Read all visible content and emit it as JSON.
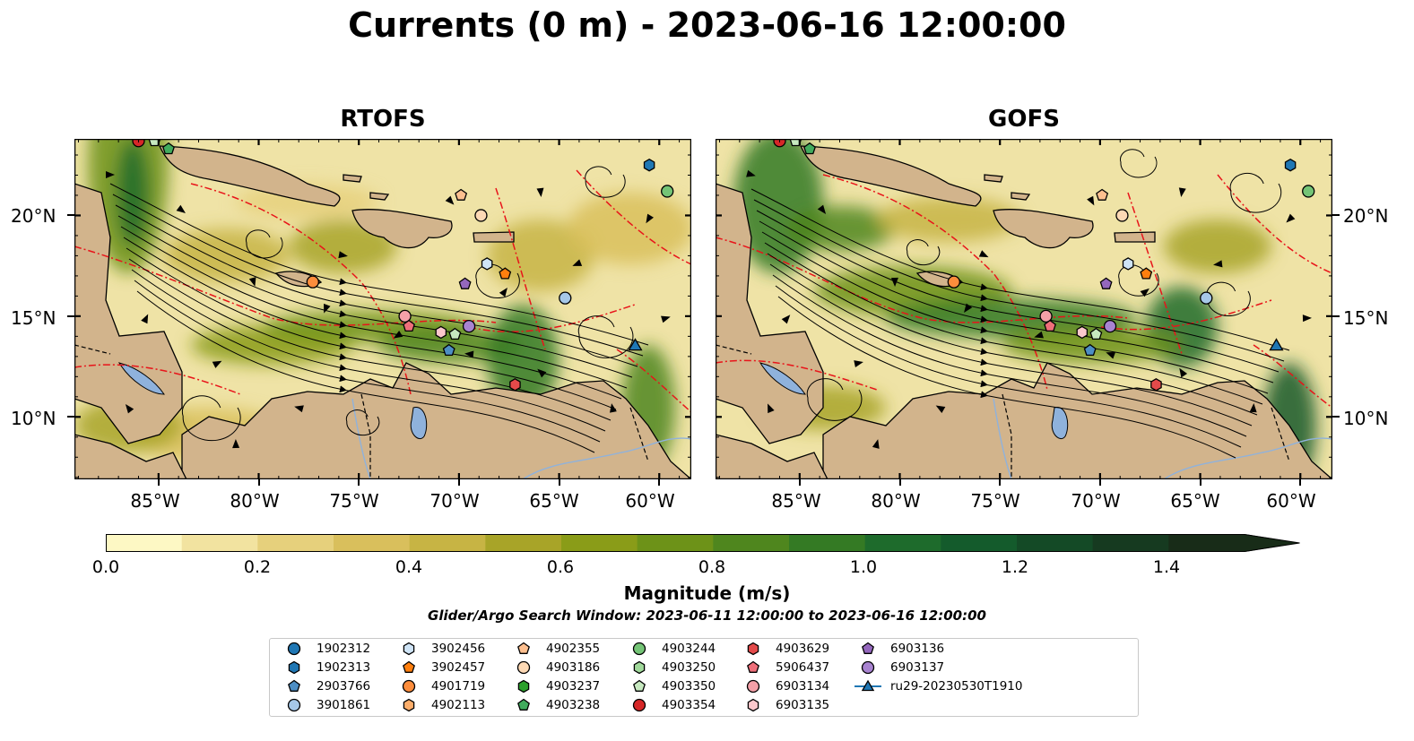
{
  "title": "Currents (0 m) - 2023-06-16 12:00:00",
  "panels": [
    {
      "title": "RTOFS",
      "variant": "rtofs"
    },
    {
      "title": "GOFS",
      "variant": "gofs"
    }
  ],
  "lat_labels": [
    "20°N",
    "15°N",
    "10°N"
  ],
  "lon_labels": [
    "85°W",
    "80°W",
    "75°W",
    "70°W",
    "65°W",
    "60°W"
  ],
  "colorbar": {
    "label": "Magnitude (m/s)",
    "ticks": [
      "0.0",
      "0.2",
      "0.4",
      "0.6",
      "0.8",
      "1.0",
      "1.2",
      "1.4"
    ],
    "min": 0.0,
    "max": 1.5,
    "extend": "max",
    "colors": [
      "#fdf8c4",
      "#f2e3a0",
      "#e6d07c",
      "#d9bf5c",
      "#c7b444",
      "#a8a428",
      "#8a9c18",
      "#6d9218",
      "#4f861e",
      "#347a24",
      "#1e6b2c",
      "#145b2c",
      "#144a26",
      "#163a20",
      "#182c18"
    ]
  },
  "search_window": "Glider/Argo Search Window: 2023-06-11 12:00:00 to 2023-06-16 12:00:00",
  "map_colors": {
    "land": "#d2b48c",
    "lake": "#8fb2dc",
    "eez": "#e8141a",
    "coast": "#000000"
  },
  "legend": [
    {
      "label": "1902312",
      "marker": "circle",
      "color": "#1f77b4"
    },
    {
      "label": "1902313",
      "marker": "hexagon",
      "color": "#1f77b4"
    },
    {
      "label": "2903766",
      "marker": "pentagon",
      "color": "#4d8ec4"
    },
    {
      "label": "3901861",
      "marker": "circle",
      "color": "#a6c8e8"
    },
    {
      "label": "3902456",
      "marker": "hexagon",
      "color": "#cfe4f6"
    },
    {
      "label": "3902457",
      "marker": "pentagon",
      "color": "#ff7f0e"
    },
    {
      "label": "4901719",
      "marker": "circle",
      "color": "#fd8d3c"
    },
    {
      "label": "4902113",
      "marker": "hexagon",
      "color": "#fdae6b"
    },
    {
      "label": "4902355",
      "marker": "pentagon",
      "color": "#fdbf8f"
    },
    {
      "label": "4903186",
      "marker": "circle",
      "color": "#fdd9b5"
    },
    {
      "label": "4903237",
      "marker": "hexagon",
      "color": "#2ca02c"
    },
    {
      "label": "4903238",
      "marker": "pentagon",
      "color": "#41ab5d"
    },
    {
      "label": "4903244",
      "marker": "circle",
      "color": "#74c476"
    },
    {
      "label": "4903250",
      "marker": "hexagon",
      "color": "#a1d99b"
    },
    {
      "label": "4903350",
      "marker": "pentagon",
      "color": "#c7e9c0"
    },
    {
      "label": "4903354",
      "marker": "circle",
      "color": "#d62728"
    },
    {
      "label": "4903629",
      "marker": "hexagon",
      "color": "#e34a4a"
    },
    {
      "label": "5906437",
      "marker": "pentagon",
      "color": "#ef6f7a"
    },
    {
      "label": "6903134",
      "marker": "circle",
      "color": "#f4a0a8"
    },
    {
      "label": "6903135",
      "marker": "hexagon",
      "color": "#fbc8cc"
    },
    {
      "label": "6903136",
      "marker": "pentagon",
      "color": "#9467bd"
    },
    {
      "label": "6903137",
      "marker": "circle",
      "color": "#a883d0"
    },
    {
      "label": "ru29-20230530T1910",
      "marker": "triangle-line",
      "color": "#1f77b4"
    }
  ]
}
